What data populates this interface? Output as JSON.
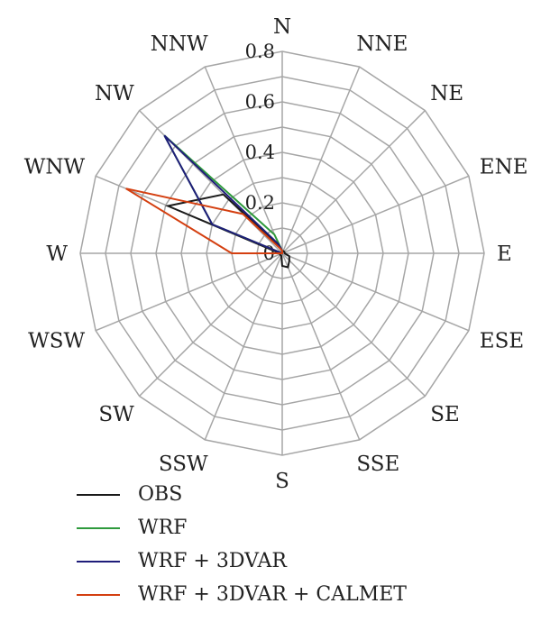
{
  "chart_data": {
    "type": "radar",
    "directions": [
      "N",
      "NNE",
      "NE",
      "ENE",
      "E",
      "ESE",
      "SE",
      "SSE",
      "S",
      "SSW",
      "SW",
      "WSW",
      "W",
      "WNW",
      "NW",
      "NNW"
    ],
    "rmax": 0.8,
    "radial_ticks": [
      "0",
      "0.2",
      "0.4",
      "0.6",
      "0.8"
    ],
    "radial_tick_values": [
      0,
      0.2,
      0.4,
      0.6,
      0.8
    ],
    "grid_levels": 8,
    "series": [
      {
        "name": "OBS",
        "color": "#1a1a1a",
        "values": [
          0.01,
          0.01,
          0.01,
          0.01,
          0.01,
          0.03,
          0.04,
          0.06,
          0.05,
          0.01,
          0.01,
          0.01,
          0.01,
          0.49,
          0.33,
          0.03
        ]
      },
      {
        "name": "WRF",
        "color": "#2e9a3c",
        "values": [
          0.01,
          0.0,
          0.0,
          0.0,
          0.0,
          0.0,
          0.0,
          0.0,
          0.0,
          0.0,
          0.0,
          0.0,
          0.0,
          0.3,
          0.66,
          0.08
        ]
      },
      {
        "name": "WRF + 3DVAR",
        "color": "#1f1d7a",
        "values": [
          0.01,
          0.0,
          0.0,
          0.0,
          0.0,
          0.0,
          0.0,
          0.0,
          0.0,
          0.0,
          0.0,
          0.0,
          0.0,
          0.3,
          0.66,
          0.04
        ]
      },
      {
        "name": "WRF + 3DVAR + CALMET",
        "color": "#d43f10",
        "values": [
          0.01,
          0.0,
          0.0,
          0.0,
          0.0,
          0.0,
          0.0,
          0.0,
          0.0,
          0.0,
          0.0,
          0.0,
          0.2,
          0.67,
          0.22,
          0.02
        ]
      }
    ]
  }
}
